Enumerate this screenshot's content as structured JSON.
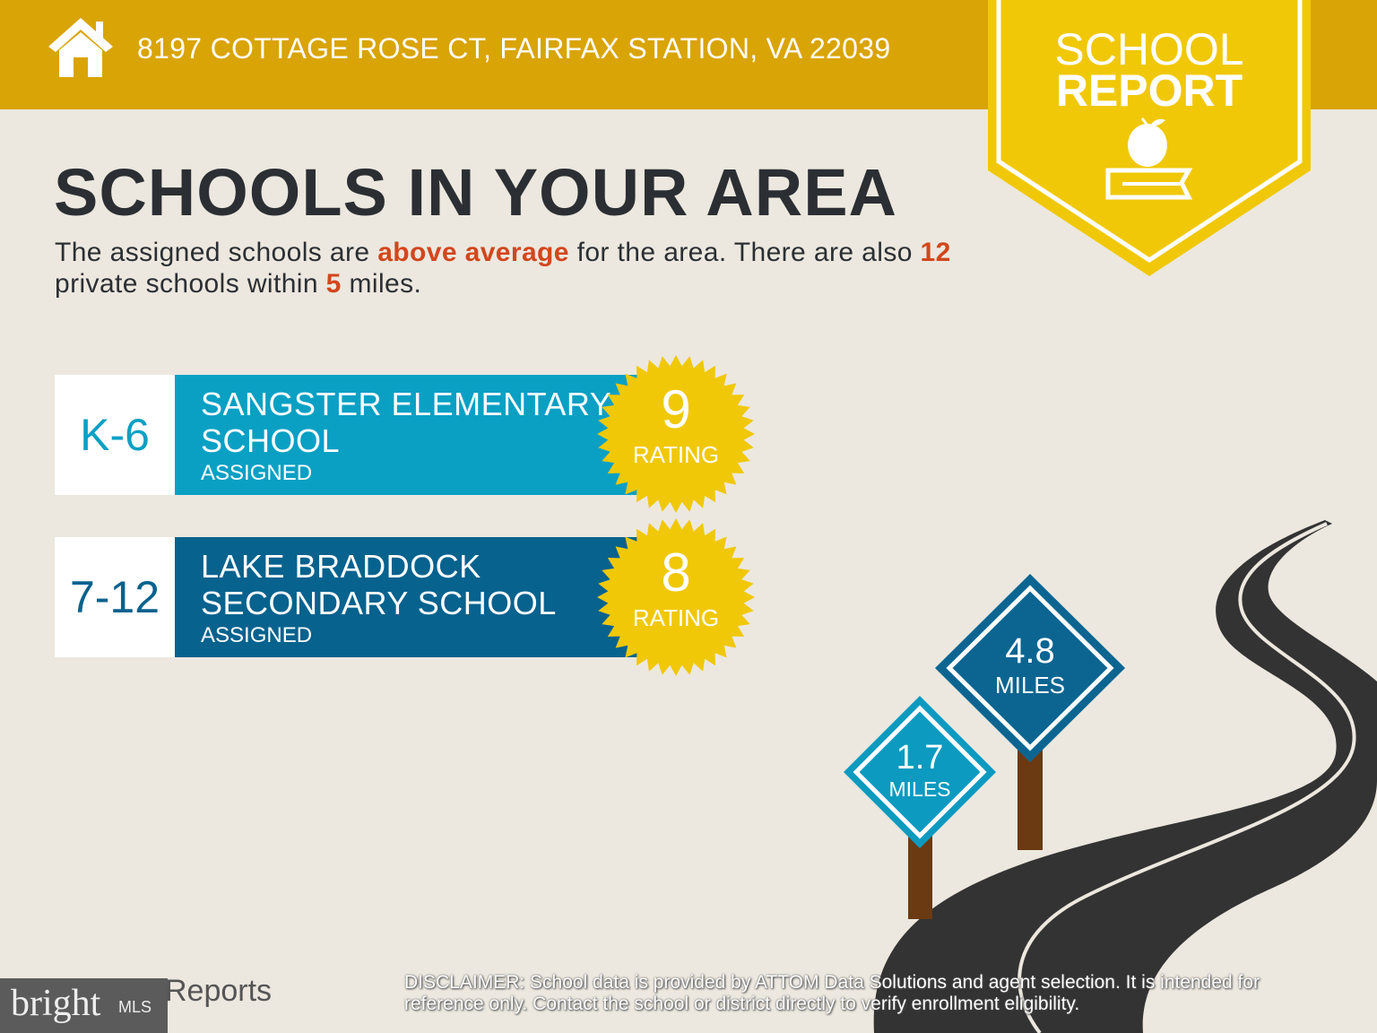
{
  "header": {
    "address": "8197 COTTAGE ROSE CT, FAIRFAX STATION, VA 22039",
    "icon": "home-icon",
    "color": "#d9a406"
  },
  "badge": {
    "line1": "SCHOOL",
    "line2": "REPORT",
    "icon": "apple-on-book-icon",
    "color": "#f0c808"
  },
  "title": "SCHOOLS IN YOUR AREA",
  "summary": {
    "p1": "The assigned schools are ",
    "highlight": "above average",
    "p2": " for the area. There are also ",
    "count": "12",
    "p3": " private schools within ",
    "miles": "5",
    "p4": " miles."
  },
  "schools": [
    {
      "grades": "K-6",
      "name_line1": "SANGSTER ELEMENTARY",
      "name_line2": "SCHOOL",
      "status": "ASSIGNED",
      "rating": "9",
      "rating_label": "RATING",
      "color": "#0aa0c4"
    },
    {
      "grades": "7-12",
      "name_line1": "LAKE BRADDOCK",
      "name_line2": "SECONDARY SCHOOL",
      "status": "ASSIGNED",
      "rating": "8",
      "rating_label": "RATING",
      "color": "#07628e"
    }
  ],
  "distances": [
    {
      "value": "4.8",
      "unit": "MILES",
      "color": "#0c6591"
    },
    {
      "value": "1.7",
      "unit": "MILES",
      "color": "#0d9ac0"
    }
  ],
  "footer": {
    "disclaimer_label": "DISCLAIMER:",
    "disclaimer": " School data is provided by ATTOM Data Solutions and agent selection. It is intended for reference only. Contact the school or district directly to verify enrollment eligibility.",
    "reports": "Reports",
    "brand": "bright",
    "brand_suffix": "MLS"
  }
}
